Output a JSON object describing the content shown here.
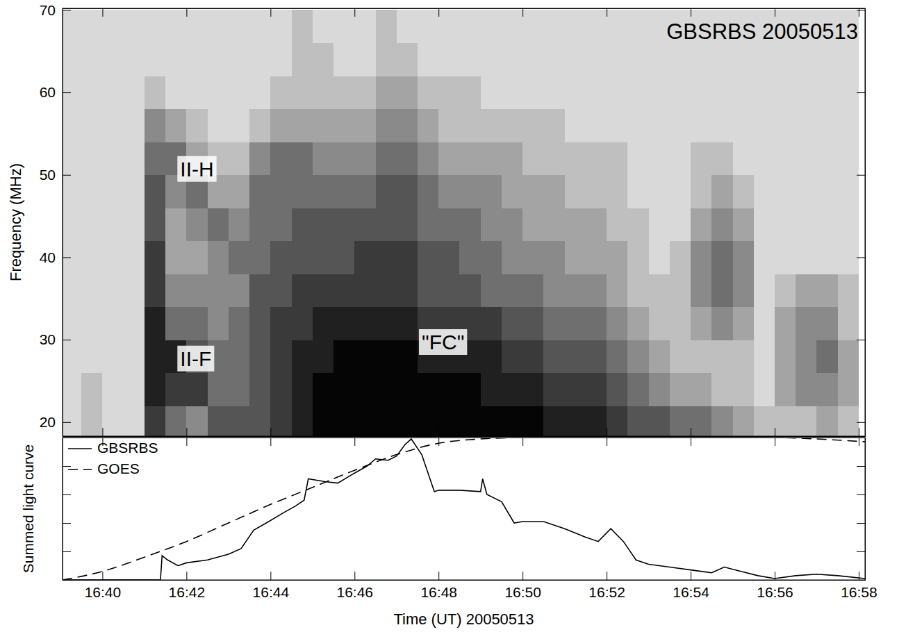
{
  "chart_data": [
    {
      "type": "heatmap",
      "title": "GBSRBS 20050513",
      "y_label": "Frequency (MHz)",
      "tick_labels": "y",
      "grid": false,
      "xlim": [
        39.05,
        58.15
      ],
      "ylim": [
        18.3,
        70.2
      ],
      "xticks": [
        {
          "value": 40,
          "label": "16:40"
        },
        {
          "value": 42,
          "label": "16:42"
        },
        {
          "value": 44,
          "label": "16:44"
        },
        {
          "value": 46,
          "label": "16:46"
        },
        {
          "value": 48,
          "label": "16:48"
        },
        {
          "value": 50,
          "label": "16:50"
        },
        {
          "value": 52,
          "label": "16:52"
        },
        {
          "value": 54,
          "label": "16:54"
        },
        {
          "value": 56,
          "label": "16:56"
        },
        {
          "value": 58,
          "label": "16:58"
        }
      ],
      "yticks": [
        20,
        30,
        40,
        50,
        60,
        70
      ],
      "zlim": [
        0,
        9
      ],
      "x_bins": [
        39,
        39.5,
        40,
        40.5,
        41,
        41.5,
        42,
        42.5,
        43,
        43.5,
        44,
        44.5,
        45,
        45.5,
        46,
        46.5,
        47,
        47.5,
        48,
        48.5,
        49,
        49.5,
        50,
        50.5,
        51,
        51.5,
        52,
        52.5,
        53,
        53.5,
        54,
        54.5,
        55,
        55.5,
        56,
        56.5,
        57,
        57.5,
        58
      ],
      "y_bins": [
        18,
        22,
        26,
        30,
        34,
        38,
        42,
        46,
        50,
        54,
        58,
        62,
        66,
        70
      ],
      "cells": [
        [
          1,
          2,
          1,
          1,
          7,
          5,
          4,
          6,
          6,
          6,
          7,
          8,
          9,
          9,
          9,
          9,
          9,
          9,
          9,
          9,
          9,
          9,
          9,
          8,
          8,
          8,
          7,
          6,
          6,
          5,
          5,
          4,
          3,
          2,
          2,
          2,
          3,
          2
        ],
        [
          1,
          2,
          1,
          1,
          8,
          7,
          7,
          5,
          5,
          6,
          7,
          8,
          9,
          9,
          9,
          9,
          9,
          9,
          9,
          9,
          8,
          8,
          8,
          7,
          7,
          7,
          6,
          5,
          4,
          3,
          3,
          2,
          2,
          1,
          3,
          4,
          4,
          3
        ],
        [
          1,
          1,
          1,
          1,
          8,
          8,
          6,
          5,
          5,
          6,
          7,
          8,
          8,
          9,
          9,
          9,
          9,
          8,
          8,
          8,
          8,
          7,
          7,
          6,
          6,
          6,
          5,
          4,
          3,
          2,
          2,
          2,
          2,
          1,
          3,
          4,
          5,
          3
        ],
        [
          1,
          1,
          1,
          1,
          8,
          5,
          5,
          4,
          5,
          6,
          7,
          7,
          8,
          8,
          8,
          8,
          8,
          7,
          7,
          7,
          7,
          6,
          6,
          5,
          5,
          5,
          4,
          3,
          2,
          2,
          3,
          4,
          3,
          1,
          3,
          4,
          4,
          2
        ],
        [
          1,
          1,
          1,
          1,
          7,
          4,
          4,
          4,
          4,
          6,
          6,
          7,
          7,
          7,
          7,
          7,
          7,
          6,
          6,
          6,
          5,
          5,
          5,
          4,
          4,
          4,
          3,
          2,
          2,
          2,
          4,
          5,
          4,
          1,
          2,
          3,
          3,
          2
        ],
        [
          1,
          1,
          1,
          1,
          7,
          3,
          3,
          4,
          5,
          5,
          6,
          6,
          6,
          6,
          7,
          7,
          7,
          6,
          6,
          5,
          5,
          4,
          4,
          4,
          3,
          3,
          3,
          2,
          1,
          2,
          4,
          5,
          4,
          1,
          1,
          1,
          1,
          1
        ],
        [
          1,
          1,
          1,
          1,
          6,
          3,
          4,
          5,
          4,
          5,
          5,
          6,
          6,
          6,
          6,
          6,
          6,
          5,
          5,
          5,
          4,
          4,
          3,
          3,
          3,
          3,
          2,
          2,
          1,
          1,
          3,
          4,
          3,
          1,
          1,
          1,
          1,
          1
        ],
        [
          1,
          1,
          1,
          1,
          6,
          4,
          5,
          3,
          3,
          5,
          5,
          5,
          5,
          5,
          5,
          6,
          6,
          5,
          4,
          4,
          4,
          3,
          3,
          3,
          2,
          2,
          2,
          1,
          1,
          1,
          2,
          3,
          2,
          1,
          1,
          1,
          1,
          1
        ],
        [
          1,
          1,
          1,
          1,
          5,
          5,
          3,
          2,
          2,
          4,
          5,
          5,
          4,
          4,
          4,
          5,
          5,
          4,
          3,
          3,
          3,
          3,
          2,
          2,
          2,
          2,
          2,
          1,
          1,
          1,
          2,
          2,
          1,
          1,
          1,
          1,
          1,
          1
        ],
        [
          1,
          1,
          1,
          1,
          4,
          3,
          2,
          1,
          1,
          2,
          3,
          3,
          3,
          3,
          3,
          4,
          4,
          3,
          2,
          2,
          2,
          2,
          2,
          2,
          1,
          1,
          1,
          1,
          1,
          1,
          1,
          1,
          1,
          1,
          1,
          1,
          1,
          1
        ],
        [
          1,
          1,
          1,
          1,
          2,
          1,
          1,
          1,
          1,
          1,
          2,
          2,
          2,
          2,
          2,
          3,
          3,
          2,
          2,
          2,
          1,
          1,
          1,
          1,
          1,
          1,
          1,
          1,
          1,
          1,
          1,
          1,
          1,
          1,
          1,
          1,
          1,
          1
        ],
        [
          1,
          1,
          1,
          1,
          1,
          1,
          1,
          1,
          1,
          1,
          1,
          2,
          2,
          1,
          1,
          2,
          2,
          1,
          1,
          1,
          1,
          1,
          1,
          1,
          1,
          1,
          1,
          1,
          1,
          1,
          1,
          1,
          1,
          1,
          1,
          1,
          1,
          1
        ],
        [
          1,
          1,
          1,
          1,
          1,
          1,
          1,
          1,
          1,
          1,
          1,
          2,
          1,
          1,
          1,
          2,
          1,
          1,
          1,
          1,
          1,
          1,
          1,
          1,
          1,
          1,
          1,
          1,
          1,
          1,
          1,
          1,
          1,
          1,
          1,
          1,
          1,
          1
        ]
      ],
      "annotations": [
        {
          "text": "II-H",
          "x": 41.85,
          "y": 50.5
        },
        {
          "text": "II-F",
          "x": 41.85,
          "y": 27.5
        },
        {
          "text": "\"FC\"",
          "x": 47.6,
          "y": 29.5
        }
      ]
    },
    {
      "type": "line",
      "x_label": "Time (UT) 20050513",
      "y_label": "Summed light curve",
      "tick_labels": "x",
      "grid": false,
      "legend": "upper left",
      "xlim": [
        39.05,
        58.15
      ],
      "ylim": [
        0,
        1
      ],
      "xticks": [
        {
          "value": 40,
          "label": "16:40"
        },
        {
          "value": 42,
          "label": "16:42"
        },
        {
          "value": 44,
          "label": "16:44"
        },
        {
          "value": 46,
          "label": "16:46"
        },
        {
          "value": 48,
          "label": "16:48"
        },
        {
          "value": 50,
          "label": "16:50"
        },
        {
          "value": 52,
          "label": "16:52"
        },
        {
          "value": 54,
          "label": "16:54"
        },
        {
          "value": 56,
          "label": "16:56"
        },
        {
          "value": 58,
          "label": "16:58"
        }
      ],
      "yticks": [
        0,
        0.2,
        0.4,
        0.6,
        0.8,
        1
      ],
      "series": [
        {
          "name": "GBSRBS",
          "color": "#000000",
          "line_style": "solid",
          "x": [
            39.05,
            41.38,
            41.42,
            41.55,
            41.8,
            42.0,
            42.5,
            43.0,
            43.3,
            43.6,
            43.9,
            44.3,
            44.6,
            44.8,
            44.9,
            45.3,
            45.6,
            46.0,
            46.3,
            46.5,
            46.8,
            47.0,
            47.2,
            47.35,
            47.6,
            47.9,
            48.0,
            48.5,
            49.0,
            49.05,
            49.15,
            49.5,
            49.8,
            50.0,
            50.5,
            51.0,
            51.5,
            51.8,
            52.1,
            52.4,
            52.7,
            53.0,
            53.5,
            54.0,
            54.5,
            54.8,
            55.2,
            55.6,
            56.0,
            56.5,
            57.0,
            57.5,
            58.15
          ],
          "values": [
            0,
            0,
            0.17,
            0.14,
            0.1,
            0.12,
            0.14,
            0.18,
            0.22,
            0.35,
            0.4,
            0.47,
            0.52,
            0.56,
            0.71,
            0.69,
            0.68,
            0.75,
            0.8,
            0.85,
            0.84,
            0.87,
            0.95,
            0.99,
            0.88,
            0.62,
            0.63,
            0.63,
            0.62,
            0.71,
            0.6,
            0.55,
            0.4,
            0.41,
            0.41,
            0.36,
            0.3,
            0.27,
            0.36,
            0.27,
            0.14,
            0.11,
            0.09,
            0.07,
            0.05,
            0.09,
            0.06,
            0.03,
            0.01,
            0.03,
            0.04,
            0.03,
            0.01
          ]
        },
        {
          "name": "GOES",
          "color": "#000000",
          "line_style": "dashed",
          "x": [
            39.05,
            40,
            41,
            42,
            43,
            44,
            45,
            46,
            47,
            48,
            49,
            50,
            52,
            54,
            56,
            57,
            58.15
          ],
          "values": [
            0,
            0.06,
            0.16,
            0.27,
            0.4,
            0.53,
            0.65,
            0.77,
            0.88,
            0.96,
            0.99,
            1,
            1,
            1,
            1,
            0.99,
            0.97
          ]
        }
      ]
    }
  ]
}
